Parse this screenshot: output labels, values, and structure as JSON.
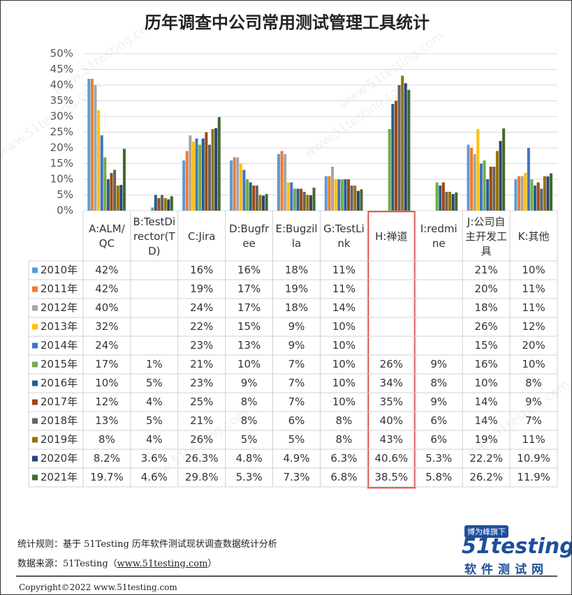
{
  "chart_data": {
    "type": "bar",
    "title": "历年调查中公司常用测试管理工具统计",
    "categories": [
      "A:ALM/QC",
      "B:TestDirector(TD)",
      "C:Jira",
      "D:Bugfree",
      "E:Bugzilla",
      "G:TestLink",
      "H:禅道",
      "I:redmine",
      "J:公司自主开发工具",
      "K:其他"
    ],
    "ylim": [
      0,
      50
    ],
    "yticks": [
      {
        "value": 0,
        "label": "0%"
      },
      {
        "value": 5,
        "label": "5%"
      },
      {
        "value": 10,
        "label": "10%"
      },
      {
        "value": 15,
        "label": "15%"
      },
      {
        "value": 20,
        "label": "20%"
      },
      {
        "value": 25,
        "label": "25%"
      },
      {
        "value": 30,
        "label": "30%"
      },
      {
        "value": 35,
        "label": "35%"
      },
      {
        "value": 40,
        "label": "40%"
      },
      {
        "value": 45,
        "label": "45%"
      },
      {
        "value": 50,
        "label": "50%"
      }
    ],
    "grid": true,
    "series": [
      {
        "name": "2010年",
        "color": "#5b9bd5",
        "values": [
          42,
          null,
          16,
          16,
          18,
          11,
          null,
          null,
          21,
          10
        ],
        "value_labels": [
          "42%",
          null,
          "16%",
          "16%",
          "18%",
          "11%",
          null,
          null,
          "21%",
          "10%"
        ]
      },
      {
        "name": "2011年",
        "color": "#ed7d31",
        "values": [
          42,
          null,
          19,
          17,
          19,
          11,
          null,
          null,
          20,
          11
        ],
        "value_labels": [
          "42%",
          null,
          "19%",
          "17%",
          "19%",
          "11%",
          null,
          null,
          "20%",
          "11%"
        ]
      },
      {
        "name": "2012年",
        "color": "#a5a5a5",
        "values": [
          40,
          null,
          24,
          17,
          18,
          14,
          null,
          null,
          18,
          11
        ],
        "value_labels": [
          "40%",
          null,
          "24%",
          "17%",
          "18%",
          "14%",
          null,
          null,
          "18%",
          "11%"
        ]
      },
      {
        "name": "2013年",
        "color": "#ffc000",
        "values": [
          32,
          null,
          22,
          15,
          9,
          10,
          null,
          null,
          26,
          12
        ],
        "value_labels": [
          "32%",
          null,
          "22%",
          "15%",
          "9%",
          "10%",
          null,
          null,
          "26%",
          "12%"
        ]
      },
      {
        "name": "2014年",
        "color": "#4472c4",
        "values": [
          24,
          null,
          23,
          13,
          9,
          10,
          null,
          null,
          15,
          20
        ],
        "value_labels": [
          "24%",
          null,
          "23%",
          "13%",
          "9%",
          "10%",
          null,
          null,
          "15%",
          "20%"
        ]
      },
      {
        "name": "2015年",
        "color": "#70ad47",
        "values": [
          17,
          1,
          21,
          10,
          7,
          10,
          26,
          9,
          16,
          10
        ],
        "value_labels": [
          "17%",
          "1%",
          "21%",
          "10%",
          "7%",
          "10%",
          "26%",
          "9%",
          "16%",
          "10%"
        ]
      },
      {
        "name": "2016年",
        "color": "#255e91",
        "values": [
          10,
          5,
          23,
          9,
          7,
          10,
          34,
          8,
          10,
          8
        ],
        "value_labels": [
          "10%",
          "5%",
          "23%",
          "9%",
          "7%",
          "10%",
          "34%",
          "8%",
          "10%",
          "8%"
        ]
      },
      {
        "name": "2017年",
        "color": "#9e480e",
        "values": [
          12,
          4,
          25,
          8,
          7,
          10,
          35,
          9,
          14,
          9
        ],
        "value_labels": [
          "12%",
          "4%",
          "25%",
          "8%",
          "7%",
          "10%",
          "35%",
          "9%",
          "14%",
          "9%"
        ]
      },
      {
        "name": "2018年",
        "color": "#636363",
        "values": [
          13,
          5,
          21,
          8,
          6,
          8,
          40,
          6,
          14,
          7
        ],
        "value_labels": [
          "13%",
          "5%",
          "21%",
          "8%",
          "6%",
          "8%",
          "40%",
          "6%",
          "14%",
          "7%"
        ]
      },
      {
        "name": "2019年",
        "color": "#997300",
        "values": [
          8,
          4,
          26,
          5,
          5,
          8,
          43,
          6,
          19,
          11
        ],
        "value_labels": [
          "8%",
          "4%",
          "26%",
          "5%",
          "5%",
          "8%",
          "43%",
          "6%",
          "19%",
          "11%"
        ]
      },
      {
        "name": "2020年",
        "color": "#264478",
        "values": [
          8.2,
          3.6,
          26.3,
          4.8,
          4.9,
          6.3,
          40.6,
          5.3,
          22.2,
          10.9
        ],
        "value_labels": [
          "8.2%",
          "3.6%",
          "26.3%",
          "4.8%",
          "4.9%",
          "6.3%",
          "40.6%",
          "5.3%",
          "22.2%",
          "10.9%"
        ]
      },
      {
        "name": "2021年",
        "color": "#43682b",
        "values": [
          19.7,
          4.6,
          29.8,
          5.3,
          7.3,
          6.8,
          38.5,
          5.8,
          26.2,
          11.9
        ],
        "value_labels": [
          "19.7%",
          "4.6%",
          "29.8%",
          "5.3%",
          "7.3%",
          "6.8%",
          "38.5%",
          "5.8%",
          "26.2%",
          "11.9%"
        ]
      }
    ]
  },
  "footer": {
    "rule": "统计规则：基于 51Testing 历年软件测试现状调查数据统计分析",
    "source_prefix": "数据来源：51Testing（",
    "source_url": "www.51testing.com",
    "source_suffix": "）",
    "copyright": "Copyright©2022 www.51testing.com"
  },
  "logo": {
    "tag": "博为峰旗下",
    "brand": "51testing",
    "subtitle": "软件测试网"
  },
  "watermark": "www.51testing.com"
}
